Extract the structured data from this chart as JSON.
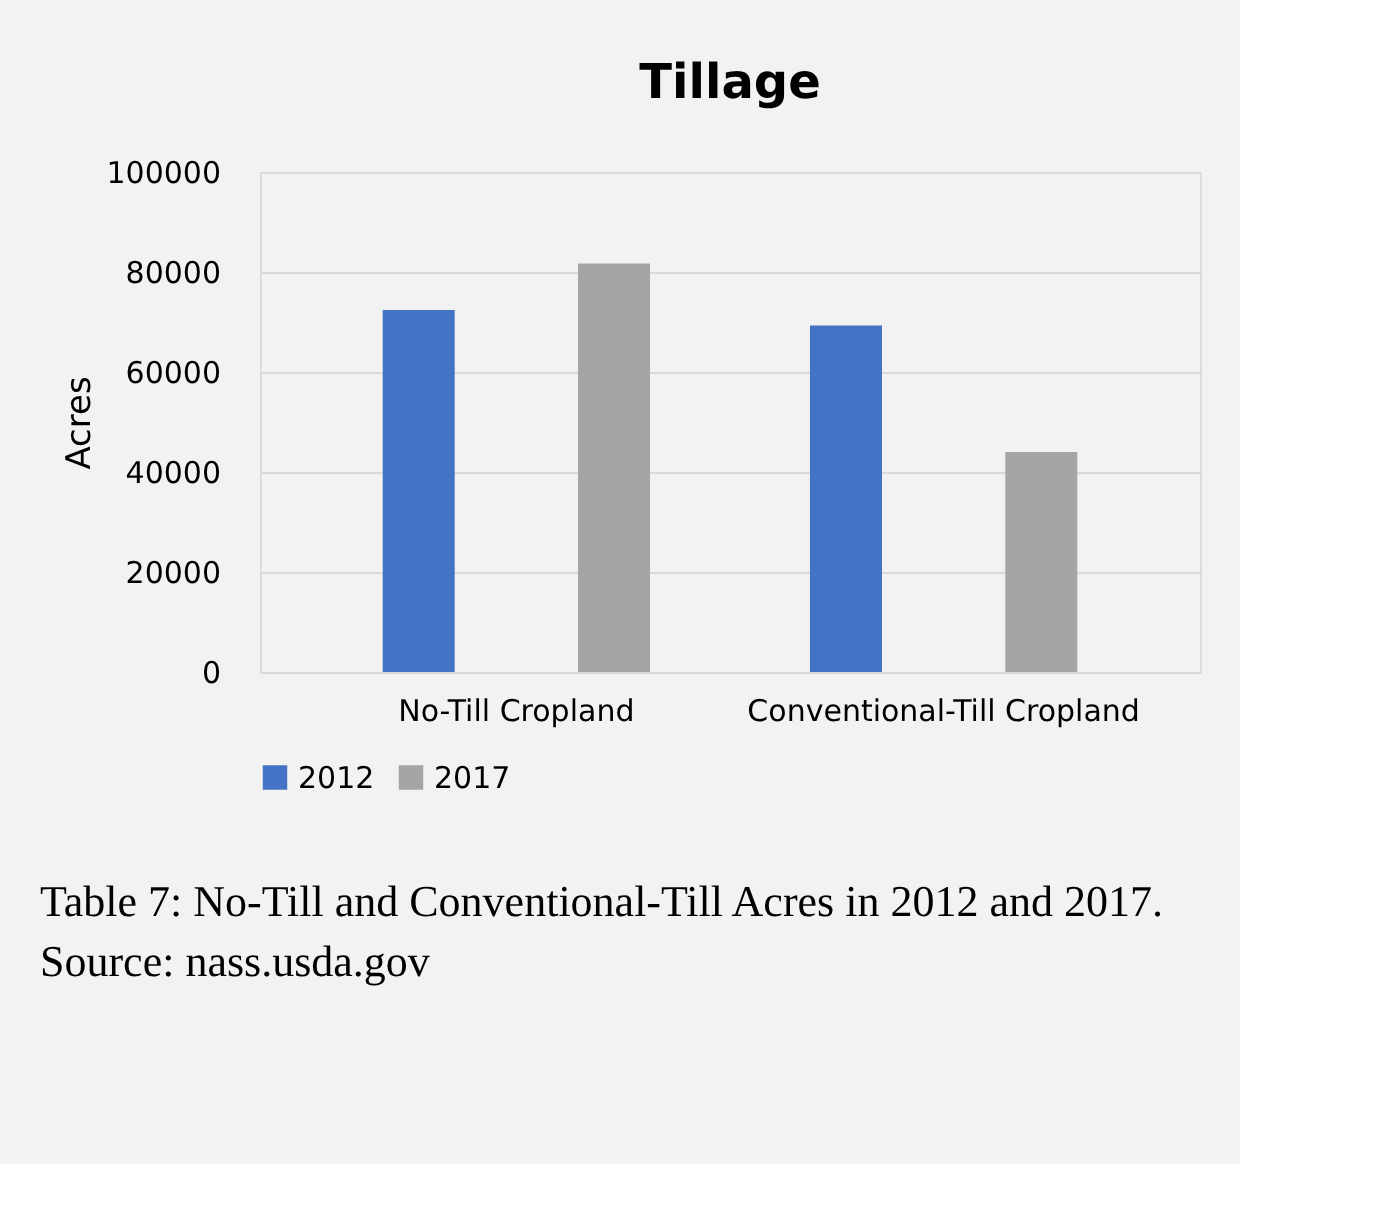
{
  "chart_data": {
    "type": "bar",
    "title": "Tillage",
    "ylabel": "Acres",
    "categories": [
      "No-Till Cropland",
      "Conventional-Till Cropland"
    ],
    "series": [
      {
        "name": "2012",
        "color": "#4472c4",
        "values": [
          72400,
          69300
        ]
      },
      {
        "name": "2017",
        "color": "#a5a5a5",
        "values": [
          81700,
          44000
        ]
      }
    ],
    "ylim": [
      0,
      100000
    ],
    "yticks": [
      0,
      20000,
      40000,
      60000,
      80000,
      100000
    ],
    "grid": "y",
    "legend": "bottom",
    "annotations": [
      "Table 7:  No-Till and Conventional-Till Acres in 2012 and 2017.",
      "Source: nass.usda.gov"
    ]
  }
}
